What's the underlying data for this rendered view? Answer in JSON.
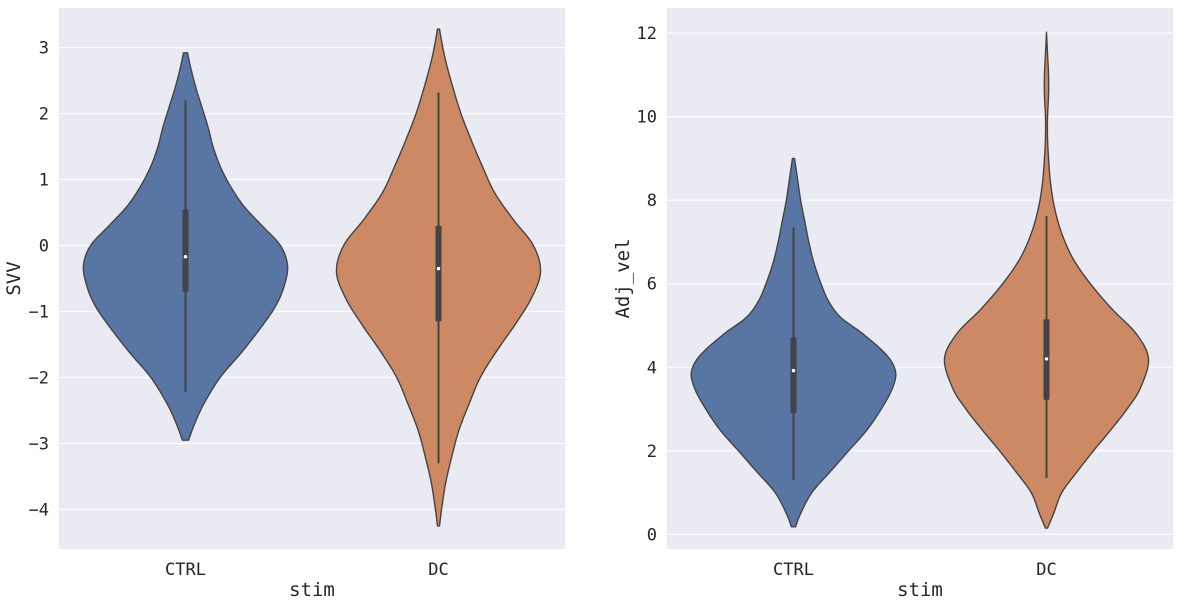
{
  "chart_data": [
    {
      "type": "violin",
      "xlabel": "stim",
      "ylabel": "SVV",
      "categories": [
        "CTRL",
        "DC"
      ],
      "ylim": [
        -4.6,
        3.6
      ],
      "yticks": [
        -4,
        -3,
        -2,
        -1,
        0,
        1,
        2,
        3
      ],
      "grid": true,
      "violins": [
        {
          "category": "CTRL",
          "color": "#5875a4",
          "min": -2.95,
          "max": 2.92,
          "q1": -0.7,
          "median": -0.17,
          "q3": 0.55,
          "whisker_low": -2.22,
          "whisker_high": 2.2,
          "density": [
            [
              -2.95,
              0.03
            ],
            [
              -2.7,
              0.09
            ],
            [
              -2.4,
              0.18
            ],
            [
              -2.0,
              0.34
            ],
            [
              -1.6,
              0.56
            ],
            [
              -1.2,
              0.76
            ],
            [
              -0.9,
              0.89
            ],
            [
              -0.6,
              0.97
            ],
            [
              -0.3,
              1.0
            ],
            [
              0.0,
              0.93
            ],
            [
              0.3,
              0.75
            ],
            [
              0.6,
              0.57
            ],
            [
              0.9,
              0.44
            ],
            [
              1.2,
              0.34
            ],
            [
              1.5,
              0.27
            ],
            [
              1.8,
              0.22
            ],
            [
              2.1,
              0.16
            ],
            [
              2.4,
              0.1
            ],
            [
              2.7,
              0.05
            ],
            [
              2.92,
              0.02
            ]
          ]
        },
        {
          "category": "DC",
          "color": "#cc8963",
          "min": -4.25,
          "max": 3.28,
          "q1": -1.15,
          "median": -0.35,
          "q3": 0.3,
          "whisker_low": -3.3,
          "whisker_high": 2.32,
          "density": [
            [
              -4.25,
              0.01
            ],
            [
              -4.0,
              0.03
            ],
            [
              -3.6,
              0.07
            ],
            [
              -3.2,
              0.13
            ],
            [
              -2.8,
              0.2
            ],
            [
              -2.4,
              0.3
            ],
            [
              -2.0,
              0.41
            ],
            [
              -1.6,
              0.57
            ],
            [
              -1.2,
              0.75
            ],
            [
              -0.8,
              0.91
            ],
            [
              -0.4,
              1.0
            ],
            [
              0.0,
              0.93
            ],
            [
              0.4,
              0.73
            ],
            [
              0.8,
              0.55
            ],
            [
              1.2,
              0.43
            ],
            [
              1.6,
              0.32
            ],
            [
              2.0,
              0.22
            ],
            [
              2.4,
              0.14
            ],
            [
              2.8,
              0.07
            ],
            [
              3.1,
              0.03
            ],
            [
              3.28,
              0.01
            ]
          ]
        }
      ]
    },
    {
      "type": "violin",
      "xlabel": "stim",
      "ylabel": "Adj_vel",
      "categories": [
        "CTRL",
        "DC"
      ],
      "ylim": [
        -0.35,
        12.6
      ],
      "yticks": [
        0,
        2,
        4,
        6,
        8,
        10,
        12
      ],
      "grid": true,
      "violins": [
        {
          "category": "CTRL",
          "color": "#5875a4",
          "min": 0.18,
          "max": 9.0,
          "q1": 2.9,
          "median": 3.92,
          "q3": 4.72,
          "whisker_low": 1.3,
          "whisker_high": 7.35,
          "density": [
            [
              0.18,
              0.02
            ],
            [
              0.5,
              0.07
            ],
            [
              1.0,
              0.18
            ],
            [
              1.5,
              0.36
            ],
            [
              2.0,
              0.54
            ],
            [
              2.5,
              0.72
            ],
            [
              3.0,
              0.86
            ],
            [
              3.5,
              0.97
            ],
            [
              3.9,
              1.0
            ],
            [
              4.3,
              0.91
            ],
            [
              4.8,
              0.68
            ],
            [
              5.2,
              0.46
            ],
            [
              5.6,
              0.34
            ],
            [
              6.0,
              0.27
            ],
            [
              6.5,
              0.2
            ],
            [
              7.0,
              0.15
            ],
            [
              7.5,
              0.11
            ],
            [
              8.0,
              0.07
            ],
            [
              8.5,
              0.04
            ],
            [
              9.0,
              0.01
            ]
          ]
        },
        {
          "category": "DC",
          "color": "#cc8963",
          "min": 0.15,
          "max": 12.02,
          "q1": 3.22,
          "median": 4.2,
          "q3": 5.15,
          "whisker_low": 1.35,
          "whisker_high": 7.62,
          "density": [
            [
              0.15,
              0.01
            ],
            [
              0.5,
              0.07
            ],
            [
              1.0,
              0.15
            ],
            [
              1.5,
              0.3
            ],
            [
              2.0,
              0.46
            ],
            [
              2.5,
              0.63
            ],
            [
              3.0,
              0.79
            ],
            [
              3.5,
              0.92
            ],
            [
              4.2,
              1.0
            ],
            [
              4.8,
              0.88
            ],
            [
              5.4,
              0.64
            ],
            [
              6.0,
              0.43
            ],
            [
              6.6,
              0.26
            ],
            [
              7.2,
              0.15
            ],
            [
              7.8,
              0.08
            ],
            [
              8.4,
              0.04
            ],
            [
              9.0,
              0.02
            ],
            [
              9.5,
              0.01
            ],
            [
              10.0,
              0.01
            ],
            [
              10.5,
              0.02
            ],
            [
              11.0,
              0.02
            ],
            [
              11.5,
              0.01
            ],
            [
              12.02,
              0.0
            ]
          ]
        }
      ]
    }
  ]
}
